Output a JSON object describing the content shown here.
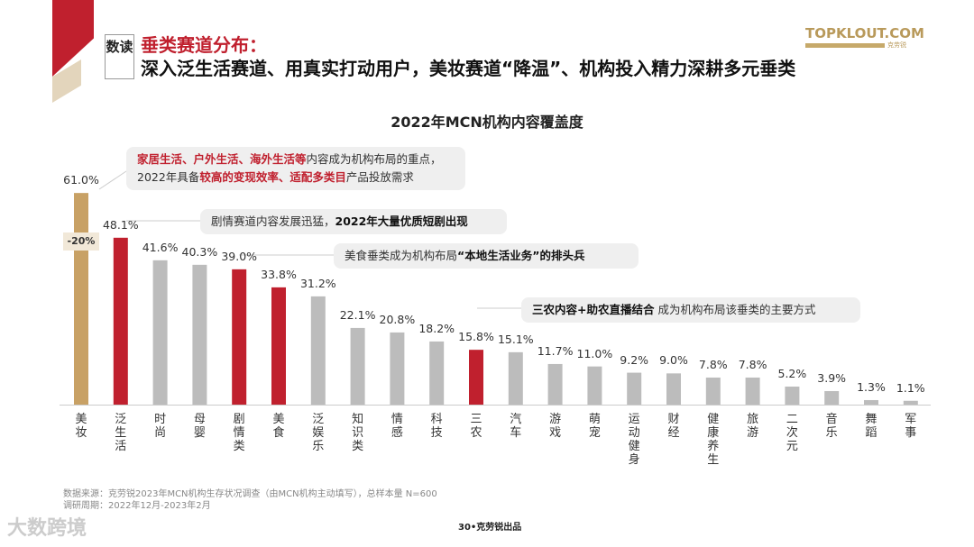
{
  "header": {
    "tag": "数读",
    "title": "垂类赛道分布：",
    "subtitle": "深入泛生活赛道、用真实打动用户，美妆赛道“降温”、机构投入精力深耕多元垂类"
  },
  "logo": {
    "text": "TOPKLOUT.COM",
    "sub": "克劳锐"
  },
  "colors": {
    "gold": "#c8a165",
    "red": "#c0202e",
    "gray": "#bcbcbc"
  },
  "chart_data": {
    "type": "bar",
    "title": "2022年MCN机构内容覆盖度",
    "categories": [
      "美妆",
      "泛生活",
      "时尚",
      "母婴",
      "剧情类",
      "美食",
      "泛娱乐",
      "知识类",
      "情感",
      "科技",
      "三农",
      "汽车",
      "游戏",
      "萌宠",
      "运动健身",
      "财经",
      "健康养生",
      "旅游",
      "二次元",
      "音乐",
      "舞蹈",
      "军事"
    ],
    "values": [
      61.0,
      48.1,
      41.6,
      40.3,
      39.0,
      33.8,
      31.2,
      22.1,
      20.8,
      18.2,
      15.8,
      15.1,
      11.7,
      11.0,
      9.2,
      9.0,
      7.8,
      7.8,
      5.2,
      3.9,
      1.3,
      1.1
    ],
    "value_labels": [
      "61.0%",
      "48.1%",
      "41.6%",
      "40.3%",
      "39.0%",
      "33.8%",
      "31.2%",
      "22.1%",
      "20.8%",
      "18.2%",
      "15.8%",
      "15.1%",
      "11.7%",
      "11.0%",
      "9.2%",
      "9.0%",
      "7.8%",
      "7.8%",
      "5.2%",
      "3.9%",
      "1.3%",
      "1.1%"
    ],
    "highlight": [
      "gold",
      "red",
      "gray",
      "gray",
      "red",
      "red",
      "gray",
      "gray",
      "gray",
      "gray",
      "red",
      "gray",
      "gray",
      "gray",
      "gray",
      "gray",
      "gray",
      "gray",
      "gray",
      "gray",
      "gray",
      "gray"
    ],
    "annotation_change": "-20%",
    "ylim": [
      0,
      65
    ],
    "grid": false
  },
  "callouts": [
    [
      {
        "t": "家居生活、户外生活、海外生活等",
        "s": "r"
      },
      {
        "t": "内容成为机构布局的重点，",
        "s": ""
      },
      {
        "t": "\n",
        "s": ""
      },
      {
        "t": "2022年具备",
        "s": ""
      },
      {
        "t": "较高的变现效率、适配多类目",
        "s": "r"
      },
      {
        "t": "产品投放需求",
        "s": ""
      }
    ],
    [
      {
        "t": "剧情赛道内容发展迅猛，",
        "s": ""
      },
      {
        "t": "2022年大量优质短剧出现",
        "s": "b"
      }
    ],
    [
      {
        "t": "美食垂类成为机构布局",
        "s": ""
      },
      {
        "t": "“本地生活业务”的排头兵",
        "s": "b"
      }
    ],
    [
      {
        "t": "三农内容+助农直播结合",
        "s": "b"
      },
      {
        "t": " 成为机构布局该垂类的主要方式",
        "s": ""
      }
    ]
  ],
  "footer": {
    "source": "数据来源：克劳锐2023年MCN机构生存状况调查（由MCN机构主动填写），总样本量 N=600",
    "period": "调研周期：2022年12月-2023年2月",
    "page": "30•克劳锐出品",
    "watermark": "大数跨境"
  }
}
